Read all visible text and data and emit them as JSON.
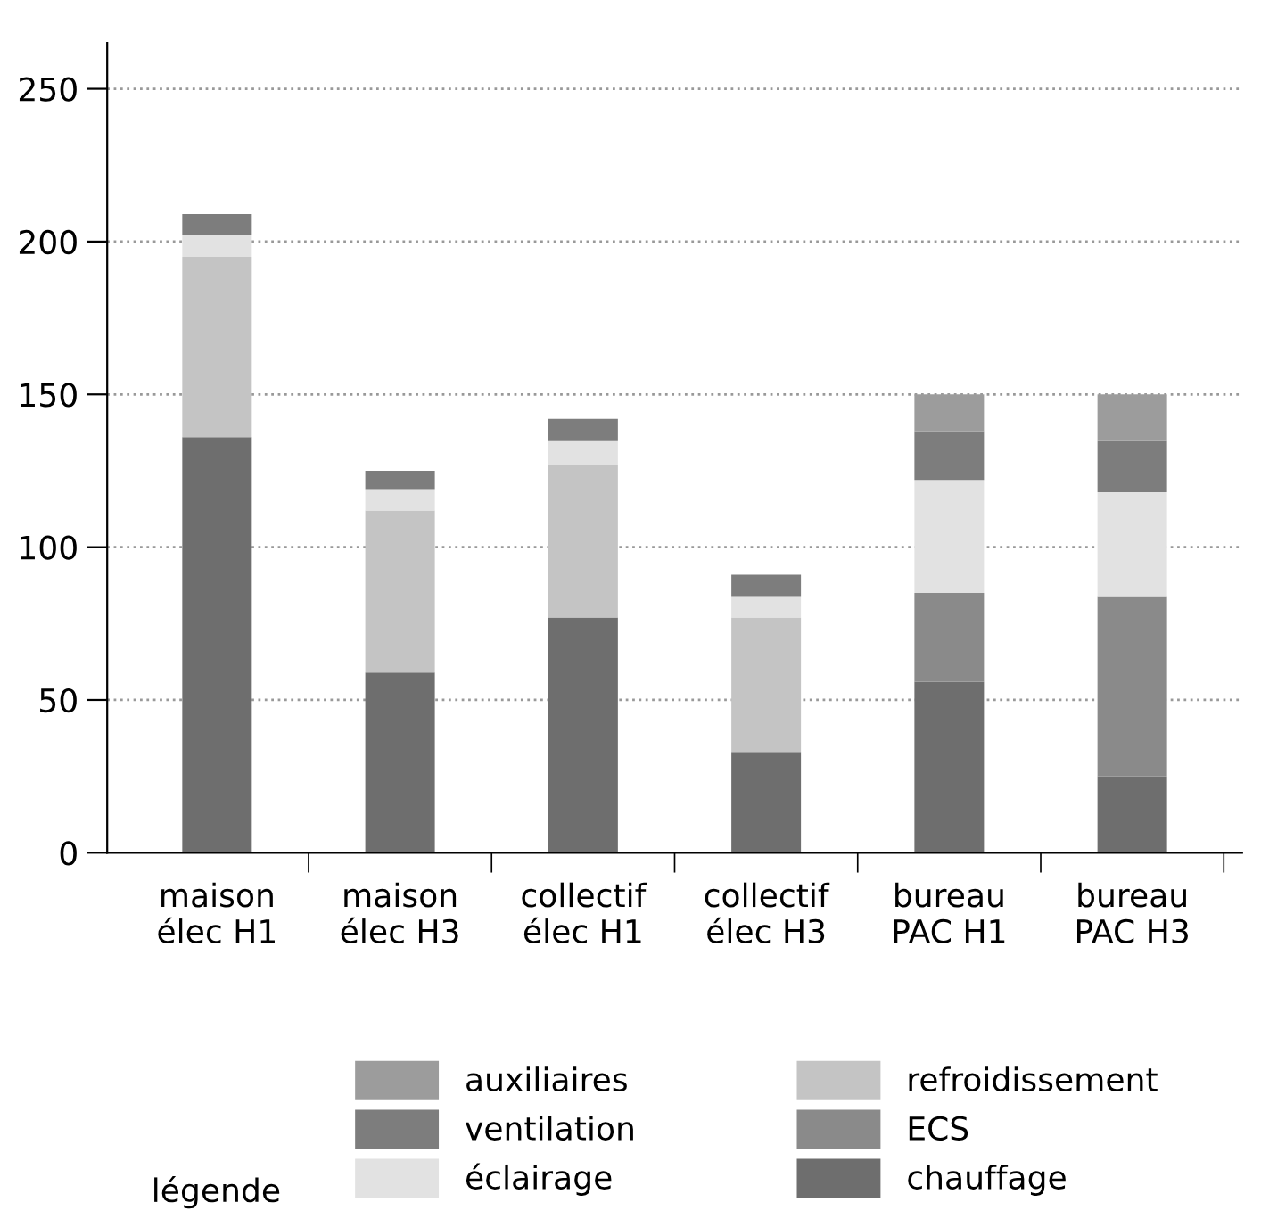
{
  "chart_data": {
    "type": "bar",
    "stacked": true,
    "legend_title": "légende",
    "categories": [
      "maison\nélec H1",
      "maison\nélec H3",
      "collectif\nélec H1",
      "collectif\nélec H3",
      "bureau\nPAC H1",
      "bureau\nPAC H3"
    ],
    "series": [
      {
        "name": "chauffage",
        "color": "#6e6e6e",
        "values": [
          136,
          59,
          77,
          33,
          56,
          25
        ]
      },
      {
        "name": "ECS",
        "color": "#8a8a8a",
        "values": [
          0,
          0,
          0,
          0,
          29,
          59
        ]
      },
      {
        "name": "refroidissement",
        "color": "#c4c4c4",
        "values": [
          59,
          53,
          50,
          44,
          0,
          0
        ]
      },
      {
        "name": "éclairage",
        "color": "#e2e2e2",
        "values": [
          7,
          7,
          8,
          7,
          37,
          34
        ]
      },
      {
        "name": "ventilation",
        "color": "#7d7d7d",
        "values": [
          7,
          6,
          7,
          7,
          16,
          17
        ]
      },
      {
        "name": "auxiliaires",
        "color": "#9c9c9c",
        "values": [
          0,
          0,
          0,
          0,
          12,
          15
        ]
      }
    ],
    "ylim": [
      0,
      265
    ],
    "yticks": [
      0,
      50,
      100,
      150,
      200,
      250
    ],
    "grid": "y",
    "legend": "bottom"
  }
}
